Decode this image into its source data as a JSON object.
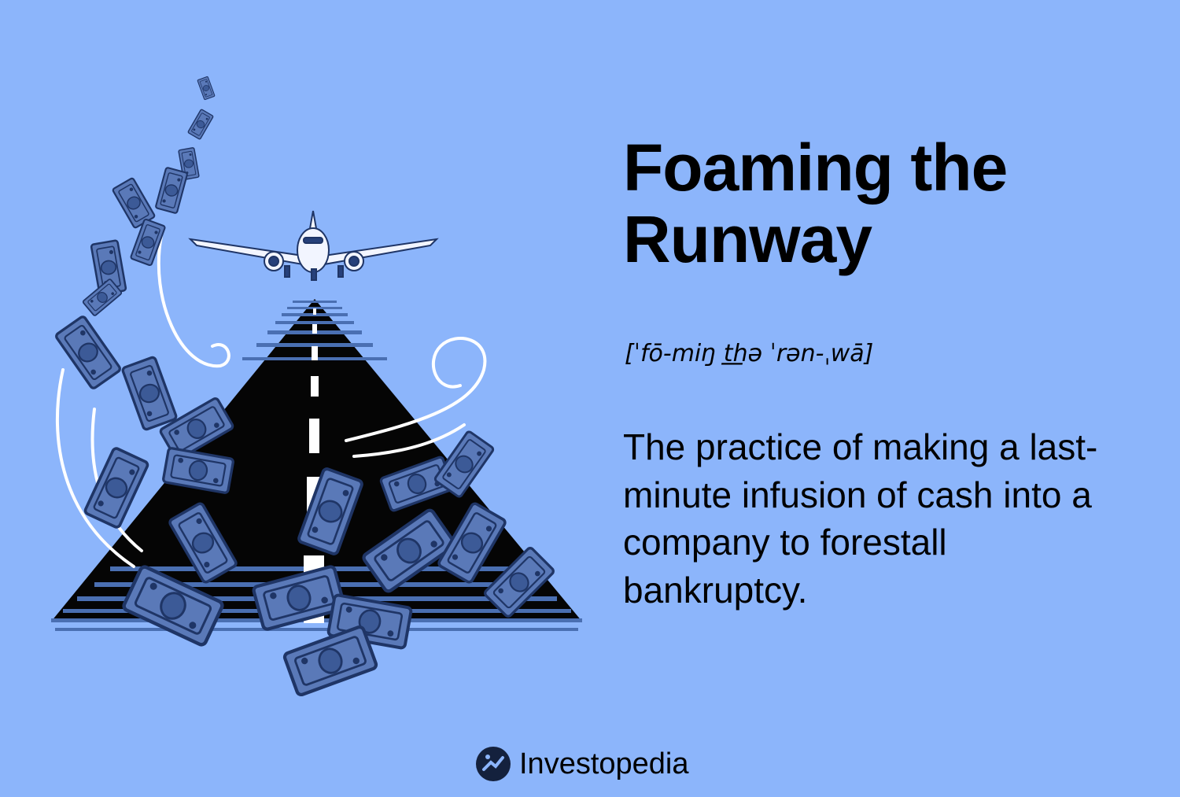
{
  "title": "Foaming the Runway",
  "pronunciation": "[ˈfō-miŋ t͟hə ˈrən-ˌwā]",
  "definition": "The practice of making a last-minute infusion of cash into a company to forestall bankruptcy.",
  "brand": {
    "name": "Investopedia",
    "icon": "investopedia-logo-icon"
  },
  "colors": {
    "background": "#8cb5fb",
    "runway": "#050505",
    "runway_stripes": "#4a6fb2",
    "money": "#5a79b8",
    "money_dark": "#26407a",
    "plane": "#f2f5ff"
  },
  "illustration": {
    "subject": "airplane-landing-on-runway-with-flying-cash",
    "icons": [
      "airplane-icon",
      "runway-icon",
      "banknote-icon",
      "wind-swirl-icon"
    ]
  }
}
